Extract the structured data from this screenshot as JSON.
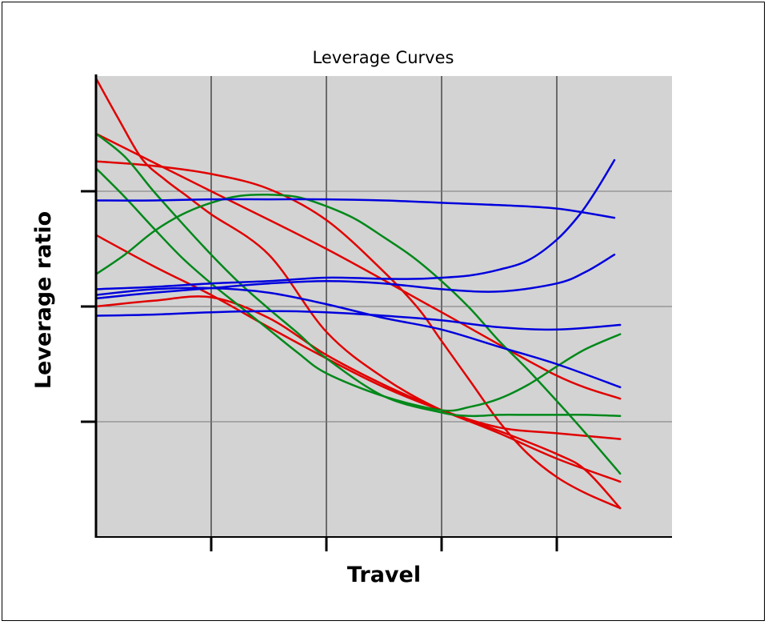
{
  "chart_data": {
    "type": "line",
    "title": "Leverage Curves",
    "xlabel": "Travel",
    "ylabel": "Leverage ratio",
    "xlim": [
      0,
      5
    ],
    "ylim": [
      0,
      4
    ],
    "x_ticks": [
      1,
      2,
      3,
      4
    ],
    "y_ticks": [
      1,
      2,
      3
    ],
    "x_tick_labels": [],
    "y_tick_labels": [],
    "grid": true,
    "legend": "none",
    "background": "#d3d3d3",
    "colors": {
      "red": "#e00000",
      "green": "#00881a",
      "blue": "#0000dd"
    },
    "series": [
      {
        "color": "red",
        "x": [
          0,
          0.2,
          0.4,
          0.6,
          0.8,
          1.0,
          1.5,
          2.0,
          2.5,
          3.0,
          3.5,
          4.0,
          4.25,
          4.55
        ],
        "y": [
          3.98,
          3.62,
          3.28,
          3.1,
          2.95,
          2.8,
          2.45,
          1.78,
          1.38,
          1.1,
          0.92,
          0.72,
          0.58,
          0.25
        ]
      },
      {
        "color": "red",
        "x": [
          0,
          1.0,
          2.0,
          3.0,
          4.0,
          4.55
        ],
        "y": [
          3.5,
          3.0,
          2.5,
          1.95,
          1.4,
          1.2
        ]
      },
      {
        "color": "red",
        "x": [
          0,
          0.5,
          1.0,
          1.5,
          2.0,
          2.5,
          2.8,
          3.0,
          3.25,
          3.5,
          3.75,
          4.0,
          4.25,
          4.55
        ],
        "y": [
          3.26,
          3.22,
          3.15,
          3.02,
          2.75,
          2.3,
          1.98,
          1.7,
          1.35,
          1.0,
          0.72,
          0.52,
          0.38,
          0.25
        ]
      },
      {
        "color": "red",
        "x": [
          0,
          0.5,
          1.0,
          1.5,
          2.0,
          2.5,
          3.0,
          3.5,
          4.0,
          4.55
        ],
        "y": [
          2.62,
          2.35,
          2.1,
          1.82,
          1.55,
          1.3,
          1.1,
          0.95,
          0.9,
          0.85
        ]
      },
      {
        "color": "red",
        "x": [
          0,
          0.5,
          1.0,
          1.5,
          2.0,
          2.5,
          3.0,
          3.5,
          4.0,
          4.55
        ],
        "y": [
          2.0,
          2.05,
          2.08,
          1.9,
          1.58,
          1.32,
          1.1,
          0.9,
          0.68,
          0.48
        ]
      },
      {
        "color": "green",
        "x": [
          0,
          0.25,
          0.5,
          0.75,
          1.0,
          1.25,
          1.5,
          1.75,
          2.0,
          2.5,
          3.0,
          3.25,
          3.5,
          3.75,
          4.0,
          4.25,
          4.55
        ],
        "y": [
          3.5,
          3.3,
          3.0,
          2.72,
          2.45,
          2.2,
          1.98,
          1.77,
          1.55,
          1.22,
          1.08,
          1.05,
          1.06,
          1.06,
          1.06,
          1.06,
          1.05
        ]
      },
      {
        "color": "green",
        "x": [
          0,
          0.25,
          0.5,
          0.75,
          1.0,
          1.25,
          1.5,
          1.75,
          2.0,
          2.5,
          3.0,
          3.25,
          3.5,
          3.75,
          4.0,
          4.25,
          4.55
        ],
        "y": [
          3.2,
          2.95,
          2.68,
          2.42,
          2.2,
          2.0,
          1.8,
          1.6,
          1.42,
          1.22,
          1.1,
          1.13,
          1.2,
          1.32,
          1.48,
          1.63,
          1.76
        ]
      },
      {
        "color": "green",
        "x": [
          0,
          0.25,
          0.5,
          0.75,
          1.0,
          1.25,
          1.5,
          1.75,
          2.0,
          2.25,
          2.5,
          2.75,
          3.0,
          3.25,
          3.5,
          3.75,
          4.0,
          4.25,
          4.55
        ],
        "y": [
          2.28,
          2.45,
          2.65,
          2.8,
          2.9,
          2.96,
          2.97,
          2.95,
          2.87,
          2.76,
          2.6,
          2.43,
          2.22,
          1.98,
          1.7,
          1.45,
          1.18,
          0.9,
          0.55
        ]
      },
      {
        "color": "blue",
        "x": [
          0,
          0.5,
          1.0,
          1.5,
          2.0,
          2.5,
          3.0,
          3.5,
          4.0,
          4.5
        ],
        "y": [
          2.92,
          2.92,
          2.93,
          2.93,
          2.93,
          2.92,
          2.9,
          2.88,
          2.85,
          2.77
        ]
      },
      {
        "color": "blue",
        "x": [
          0,
          0.5,
          1.0,
          1.5,
          2.0,
          2.5,
          2.8,
          3.0,
          3.25,
          3.5,
          3.75,
          4.0,
          4.2,
          4.35,
          4.5
        ],
        "y": [
          2.15,
          2.17,
          2.2,
          2.22,
          2.25,
          2.24,
          2.24,
          2.25,
          2.27,
          2.32,
          2.4,
          2.58,
          2.8,
          3.02,
          3.27
        ]
      },
      {
        "color": "blue",
        "x": [
          0,
          0.5,
          1.0,
          1.5,
          2.0,
          2.5,
          3.0,
          3.5,
          4.0,
          4.25,
          4.5
        ],
        "y": [
          2.07,
          2.12,
          2.16,
          2.2,
          2.22,
          2.2,
          2.15,
          2.13,
          2.2,
          2.3,
          2.45
        ]
      },
      {
        "color": "blue",
        "x": [
          0,
          0.5,
          1.0,
          1.5,
          2.0,
          2.5,
          3.0,
          3.5,
          4.0,
          4.55
        ],
        "y": [
          2.1,
          2.15,
          2.16,
          2.12,
          2.02,
          1.9,
          1.8,
          1.65,
          1.5,
          1.3
        ]
      },
      {
        "color": "blue",
        "x": [
          0,
          0.5,
          1.0,
          1.5,
          2.0,
          2.5,
          3.0,
          3.5,
          4.0,
          4.55
        ],
        "y": [
          1.92,
          1.93,
          1.95,
          1.96,
          1.95,
          1.92,
          1.88,
          1.82,
          1.8,
          1.84
        ]
      }
    ]
  }
}
